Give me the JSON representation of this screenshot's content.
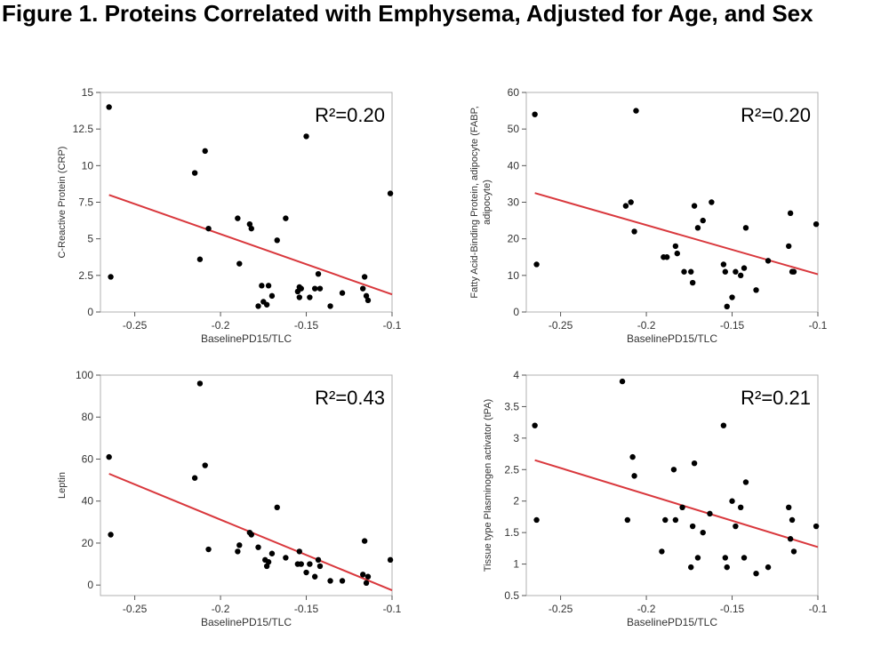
{
  "figure": {
    "title": "Figure 1. Proteins Correlated with Emphysema, Adjusted for Age, and Sex"
  },
  "colors": {
    "fit_line": "#d9383d",
    "points": "#000000",
    "frame": "#b0b0b0"
  },
  "chart_data": [
    {
      "type": "scatter",
      "title": "",
      "xlabel": "BaselinePD15/TLC",
      "ylabel": "C-Reactive Protein (CRP)",
      "annotation": "R²=0.20",
      "xlim": [
        -0.27,
        -0.1
      ],
      "ylim": [
        0,
        15
      ],
      "xticks": [
        -0.25,
        -0.2,
        -0.15,
        -0.1
      ],
      "xtick_labels": [
        "-0.25",
        "-0.2",
        "-0.15",
        "-0.1"
      ],
      "yticks": [
        0,
        2.5,
        5,
        7.5,
        10,
        12.5,
        15
      ],
      "ytick_labels": [
        "0",
        "2.5",
        "5",
        "7.5",
        "10",
        "12.5",
        "15"
      ],
      "grid": false,
      "fit_line": {
        "x": [
          -0.265,
          -0.1
        ],
        "y": [
          8.0,
          1.2
        ]
      },
      "x": [
        -0.265,
        -0.264,
        -0.215,
        -0.212,
        -0.209,
        -0.207,
        -0.19,
        -0.189,
        -0.183,
        -0.182,
        -0.178,
        -0.176,
        -0.175,
        -0.173,
        -0.172,
        -0.17,
        -0.167,
        -0.162,
        -0.155,
        -0.154,
        -0.154,
        -0.153,
        -0.15,
        -0.148,
        -0.145,
        -0.143,
        -0.142,
        -0.136,
        -0.129,
        -0.117,
        -0.116,
        -0.115,
        -0.114,
        -0.101
      ],
      "y": [
        14.0,
        2.4,
        9.5,
        3.6,
        11.0,
        5.7,
        6.4,
        3.3,
        6.0,
        5.7,
        0.4,
        1.8,
        0.7,
        0.5,
        1.8,
        1.1,
        4.9,
        6.4,
        1.4,
        1.7,
        1.0,
        1.6,
        12.0,
        1.0,
        1.6,
        2.6,
        1.6,
        0.4,
        1.3,
        1.6,
        2.4,
        1.1,
        0.8,
        8.1
      ]
    },
    {
      "type": "scatter",
      "title": "",
      "xlabel": "BaselinePD15/TLC",
      "ylabel": "Fatty Acid-Binding Protein, adipocyte (FABP, adipocyte)",
      "ylabel_lines": [
        "Fatty Acid-Binding Protein, adipocyte (FABP,",
        "adipocyte)"
      ],
      "annotation": "R²=0.20",
      "xlim": [
        -0.27,
        -0.1
      ],
      "ylim": [
        0,
        60
      ],
      "xticks": [
        -0.25,
        -0.2,
        -0.15,
        -0.1
      ],
      "xtick_labels": [
        "-0.25",
        "-0.2",
        "-0.15",
        "-0.1"
      ],
      "yticks": [
        0,
        10,
        20,
        30,
        40,
        50,
        60
      ],
      "ytick_labels": [
        "0",
        "10",
        "20",
        "30",
        "40",
        "50",
        "60"
      ],
      "grid": false,
      "fit_line": {
        "x": [
          -0.265,
          -0.1
        ],
        "y": [
          32.5,
          10.3
        ]
      },
      "x": [
        -0.265,
        -0.264,
        -0.212,
        -0.209,
        -0.207,
        -0.206,
        -0.19,
        -0.188,
        -0.183,
        -0.182,
        -0.178,
        -0.174,
        -0.173,
        -0.172,
        -0.17,
        -0.167,
        -0.162,
        -0.155,
        -0.154,
        -0.153,
        -0.15,
        -0.148,
        -0.145,
        -0.143,
        -0.142,
        -0.136,
        -0.129,
        -0.117,
        -0.116,
        -0.115,
        -0.114,
        -0.101
      ],
      "y": [
        54.0,
        13.0,
        29.0,
        30.0,
        22.0,
        55.0,
        15.0,
        15.0,
        18.0,
        16.0,
        11.0,
        11.0,
        8.0,
        29.0,
        23.0,
        25.0,
        30.0,
        13.0,
        11.0,
        1.5,
        4.0,
        11.0,
        10.0,
        12.0,
        23.0,
        6.0,
        14.0,
        18.0,
        27.0,
        11.0,
        11.0,
        24.0
      ]
    },
    {
      "type": "scatter",
      "title": "",
      "xlabel": "BaselinePD15/TLC",
      "ylabel": "Leptin",
      "annotation": "R²=0.43",
      "xlim": [
        -0.27,
        -0.1
      ],
      "ylim": [
        -5,
        100
      ],
      "xticks": [
        -0.25,
        -0.2,
        -0.15,
        -0.1
      ],
      "xtick_labels": [
        "-0.25",
        "-0.2",
        "-0.15",
        "-0.1"
      ],
      "yticks": [
        0,
        20,
        40,
        60,
        80,
        100
      ],
      "ytick_labels": [
        "0",
        "20",
        "40",
        "60",
        "80",
        "100"
      ],
      "grid": false,
      "fit_line": {
        "x": [
          -0.265,
          -0.1
        ],
        "y": [
          53.0,
          -2.5
        ]
      },
      "x": [
        -0.265,
        -0.264,
        -0.215,
        -0.212,
        -0.209,
        -0.207,
        -0.19,
        -0.189,
        -0.183,
        -0.182,
        -0.178,
        -0.174,
        -0.173,
        -0.172,
        -0.17,
        -0.167,
        -0.162,
        -0.155,
        -0.154,
        -0.153,
        -0.15,
        -0.148,
        -0.145,
        -0.143,
        -0.142,
        -0.136,
        -0.129,
        -0.117,
        -0.116,
        -0.115,
        -0.114,
        -0.101
      ],
      "y": [
        61.0,
        24.0,
        51.0,
        96.0,
        57.0,
        17.0,
        16.0,
        19.0,
        25.0,
        24.0,
        18.0,
        12.0,
        9.0,
        11.0,
        15.0,
        37.0,
        13.0,
        10.0,
        16.0,
        10.0,
        6.0,
        10.0,
        4.0,
        12.0,
        9.0,
        2.0,
        2.0,
        5.0,
        21.0,
        1.0,
        4.0,
        12.0
      ]
    },
    {
      "type": "scatter",
      "title": "",
      "xlabel": "BaselinePD15/TLC",
      "ylabel": "Tissue type Plasminogen activator (tPA)",
      "annotation": "R²=0.21",
      "xlim": [
        -0.27,
        -0.1
      ],
      "ylim": [
        0.5,
        4
      ],
      "xticks": [
        -0.25,
        -0.2,
        -0.15,
        -0.1
      ],
      "xtick_labels": [
        "-0.25",
        "-0.2",
        "-0.15",
        "-0.1"
      ],
      "yticks": [
        0.5,
        1,
        1.5,
        2,
        2.5,
        3,
        3.5,
        4
      ],
      "ytick_labels": [
        "0.5",
        "1",
        "1.5",
        "2",
        "2.5",
        "3",
        "3.5",
        "4"
      ],
      "grid": false,
      "fit_line": {
        "x": [
          -0.265,
          -0.1
        ],
        "y": [
          2.65,
          1.27
        ]
      },
      "x": [
        -0.265,
        -0.264,
        -0.214,
        -0.211,
        -0.208,
        -0.207,
        -0.191,
        -0.189,
        -0.184,
        -0.183,
        -0.179,
        -0.174,
        -0.173,
        -0.172,
        -0.17,
        -0.167,
        -0.163,
        -0.155,
        -0.154,
        -0.153,
        -0.15,
        -0.148,
        -0.145,
        -0.143,
        -0.142,
        -0.136,
        -0.129,
        -0.117,
        -0.116,
        -0.115,
        -0.114,
        -0.101
      ],
      "y": [
        3.2,
        1.7,
        3.9,
        1.7,
        2.7,
        2.4,
        1.2,
        1.7,
        2.5,
        1.7,
        1.9,
        0.95,
        1.6,
        2.6,
        1.1,
        1.5,
        1.8,
        3.2,
        1.1,
        0.95,
        2.0,
        1.6,
        1.9,
        1.1,
        2.3,
        0.85,
        0.95,
        1.9,
        1.4,
        1.7,
        1.2,
        1.6
      ]
    }
  ]
}
